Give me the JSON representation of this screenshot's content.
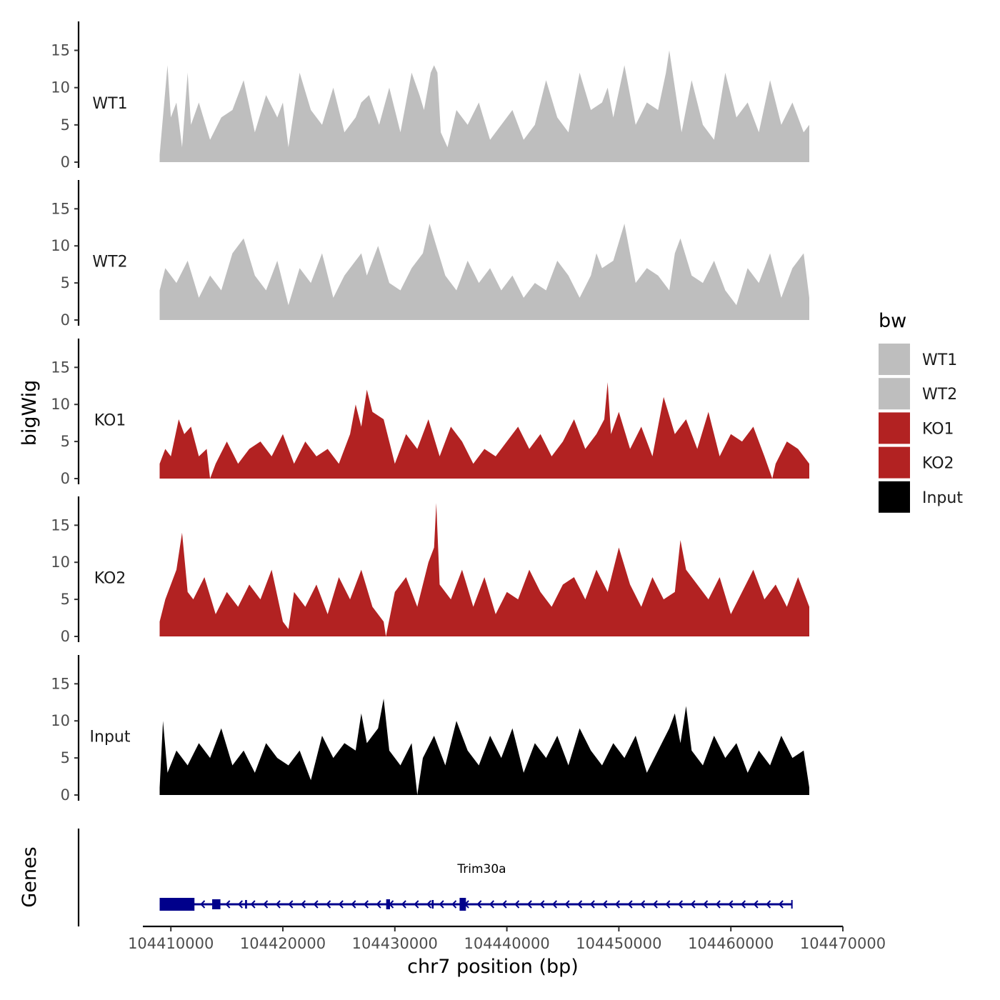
{
  "chart_data": {
    "type": "area",
    "title": "",
    "ylabel": "bigWig",
    "xlabel": "chr7 position (bp)",
    "xlim": [
      104407500,
      104470000
    ],
    "x_ticks": [
      104410000,
      104420000,
      104430000,
      104440000,
      104450000,
      104460000,
      104470000
    ],
    "x_tick_labels": [
      "104410000",
      "104420000",
      "104430000",
      "104440000",
      "104450000",
      "104460000",
      "104470000"
    ],
    "ylim": [
      0,
      18.5
    ],
    "y_ticks": [
      0,
      5,
      10,
      15
    ],
    "y_tick_labels": [
      "0",
      "5",
      "10",
      "15"
    ],
    "data_range": [
      104409000,
      104467000
    ],
    "colors": {
      "WT": "#bebebe",
      "KO": "#b22222",
      "Input": "#000000",
      "gene": "#00008b"
    },
    "legend": {
      "title": "bw",
      "position": "right",
      "entries": [
        {
          "label": "WT1",
          "color": "#bebebe"
        },
        {
          "label": "WT2",
          "color": "#bebebe"
        },
        {
          "label": "KO1",
          "color": "#b22222"
        },
        {
          "label": "KO2",
          "color": "#b22222"
        },
        {
          "label": "Input",
          "color": "#000000"
        }
      ]
    },
    "series": [
      {
        "name": "WT1",
        "color": "#bebebe",
        "x": [
          104409000,
          104409700,
          104410000,
          104410500,
          104411000,
          104411500,
          104411800,
          104412500,
          104413500,
          104414500,
          104415500,
          104416500,
          104417500,
          104418500,
          104419500,
          104420000,
          104420500,
          104421500,
          104422500,
          104423500,
          104424500,
          104425500,
          104426500,
          104427000,
          104427700,
          104428600,
          104429500,
          104430500,
          104431500,
          104432200,
          104432600,
          104433200,
          104433500,
          104433800,
          104434100,
          104434700,
          104435500,
          104436500,
          104437500,
          104438500,
          104439500,
          104440500,
          104441500,
          104442500,
          104443500,
          104444500,
          104445500,
          104446500,
          104447500,
          104448500,
          104449000,
          104449500,
          104450500,
          104451500,
          104452500,
          104453500,
          104454200,
          104454500,
          104455000,
          104455600,
          104456500,
          104457500,
          104458500,
          104459500,
          104460500,
          104461500,
          104462500,
          104463500,
          104464500,
          104465500,
          104466500,
          104467000
        ],
        "values": [
          1,
          13,
          6,
          8,
          2,
          12,
          5,
          8,
          3,
          6,
          7,
          11,
          4,
          9,
          6,
          8,
          2,
          12,
          7,
          5,
          10,
          4,
          6,
          8,
          9,
          5,
          10,
          4,
          12,
          9,
          7,
          12,
          13,
          12,
          4,
          2,
          7,
          5,
          8,
          3,
          5,
          7,
          3,
          5,
          11,
          6,
          4,
          12,
          7,
          8,
          10,
          6,
          13,
          5,
          8,
          7,
          12,
          15,
          10,
          4,
          11,
          5,
          3,
          12,
          6,
          8,
          4,
          11,
          5,
          8,
          4,
          5
        ]
      },
      {
        "name": "WT2",
        "color": "#bebebe",
        "x": [
          104409000,
          104409500,
          104410500,
          104411500,
          104412500,
          104413500,
          104414500,
          104415500,
          104416500,
          104417500,
          104418500,
          104419500,
          104420500,
          104421500,
          104422500,
          104423500,
          104424500,
          104425500,
          104426500,
          104427000,
          104427500,
          104428500,
          104429500,
          104430500,
          104431500,
          104432500,
          104433100,
          104433700,
          104434500,
          104435500,
          104436500,
          104437500,
          104438500,
          104439500,
          104440500,
          104441500,
          104442500,
          104443500,
          104444500,
          104445500,
          104446500,
          104447500,
          104448000,
          104448500,
          104449500,
          104450500,
          104451500,
          104452500,
          104453500,
          104454500,
          104455000,
          104455500,
          104456500,
          104457500,
          104458500,
          104459500,
          104460500,
          104461500,
          104462500,
          104463500,
          104464500,
          104465500,
          104466500,
          104467000
        ],
        "values": [
          4,
          7,
          5,
          8,
          3,
          6,
          4,
          9,
          11,
          6,
          4,
          8,
          2,
          7,
          5,
          9,
          3,
          6,
          8,
          9,
          6,
          10,
          5,
          4,
          7,
          9,
          13,
          10,
          6,
          4,
          8,
          5,
          7,
          4,
          6,
          3,
          5,
          4,
          8,
          6,
          3,
          6,
          9,
          7,
          8,
          13,
          5,
          7,
          6,
          4,
          9,
          11,
          6,
          5,
          8,
          4,
          2,
          7,
          5,
          9,
          3,
          7,
          9,
          3
        ]
      },
      {
        "name": "KO1",
        "color": "#b22222",
        "x": [
          104409000,
          104409500,
          104410000,
          104410700,
          104411200,
          104411800,
          104412500,
          104413200,
          104413500,
          104414000,
          104415000,
          104416000,
          104417000,
          104418000,
          104419000,
          104420000,
          104421000,
          104422000,
          104423000,
          104424000,
          104425000,
          104426000,
          104426500,
          104427000,
          104427500,
          104428000,
          104429000,
          104430000,
          104431000,
          104432000,
          104433000,
          104434000,
          104435000,
          104436000,
          104437000,
          104438000,
          104439000,
          104440000,
          104441000,
          104442000,
          104443000,
          104444000,
          104445000,
          104446000,
          104447000,
          104448000,
          104448700,
          104449000,
          104449300,
          104450000,
          104451000,
          104452000,
          104453000,
          104454000,
          104455000,
          104456000,
          104457000,
          104458000,
          104459000,
          104460000,
          104461000,
          104462000,
          104463000,
          104463700,
          104464000,
          104465000,
          104466000,
          104467000
        ],
        "values": [
          2,
          4,
          3,
          8,
          6,
          7,
          3,
          4,
          0,
          2,
          5,
          2,
          4,
          5,
          3,
          6,
          2,
          5,
          3,
          4,
          2,
          6,
          10,
          7,
          12,
          9,
          8,
          2,
          6,
          4,
          8,
          3,
          7,
          5,
          2,
          4,
          3,
          5,
          7,
          4,
          6,
          3,
          5,
          8,
          4,
          6,
          8,
          13,
          6,
          9,
          4,
          7,
          3,
          11,
          6,
          8,
          4,
          9,
          3,
          6,
          5,
          7,
          3,
          0,
          2,
          5,
          4,
          2
        ]
      },
      {
        "name": "KO2",
        "color": "#b22222",
        "x": [
          104409000,
          104409500,
          104410000,
          104410500,
          104411000,
          104411500,
          104412000,
          104413000,
          104414000,
          104415000,
          104416000,
          104417000,
          104418000,
          104419000,
          104420000,
          104420500,
          104421000,
          104422000,
          104423000,
          104424000,
          104425000,
          104426000,
          104427000,
          104428000,
          104429000,
          104429200,
          104430000,
          104431000,
          104432000,
          104433000,
          104433500,
          104433700,
          104434000,
          104435000,
          104436000,
          104437000,
          104438000,
          104439000,
          104440000,
          104441000,
          104442000,
          104443000,
          104444000,
          104445000,
          104446000,
          104447000,
          104448000,
          104449000,
          104450000,
          104451000,
          104452000,
          104453000,
          104454000,
          104455000,
          104455500,
          104456000,
          104457000,
          104458000,
          104459000,
          104460000,
          104461000,
          104462000,
          104463000,
          104464000,
          104465000,
          104466000,
          104467000
        ],
        "values": [
          2,
          5,
          7,
          9,
          14,
          6,
          5,
          8,
          3,
          6,
          4,
          7,
          5,
          9,
          2,
          1,
          6,
          4,
          7,
          3,
          8,
          5,
          9,
          4,
          2,
          0,
          6,
          8,
          4,
          10,
          12,
          18,
          7,
          5,
          9,
          4,
          8,
          3,
          6,
          5,
          9,
          6,
          4,
          7,
          8,
          5,
          9,
          6,
          12,
          7,
          4,
          8,
          5,
          6,
          13,
          9,
          7,
          5,
          8,
          3,
          6,
          9,
          5,
          7,
          4,
          8,
          4
        ]
      },
      {
        "name": "Input",
        "color": "#000000",
        "x": [
          104409000,
          104409300,
          104409700,
          104410500,
          104411500,
          104412500,
          104413500,
          104414500,
          104415500,
          104416500,
          104417500,
          104418500,
          104419500,
          104420500,
          104421500,
          104422500,
          104423500,
          104424500,
          104425500,
          104426500,
          104427000,
          104427500,
          104428500,
          104429000,
          104429500,
          104430500,
          104431500,
          104432000,
          104432500,
          104433500,
          104434500,
          104435500,
          104436500,
          104437500,
          104438500,
          104439500,
          104440500,
          104441500,
          104442500,
          104443500,
          104444500,
          104445500,
          104446500,
          104447500,
          104448500,
          104449500,
          104450500,
          104451500,
          104452500,
          104453500,
          104454500,
          104455000,
          104455500,
          104456000,
          104456500,
          104457500,
          104458500,
          104459500,
          104460500,
          104461500,
          104462500,
          104463500,
          104464500,
          104465500,
          104466500,
          104467000
        ],
        "values": [
          1,
          10,
          3,
          6,
          4,
          7,
          5,
          9,
          4,
          6,
          3,
          7,
          5,
          4,
          6,
          2,
          8,
          5,
          7,
          6,
          11,
          7,
          9,
          13,
          6,
          4,
          7,
          0,
          5,
          8,
          4,
          10,
          6,
          4,
          8,
          5,
          9,
          3,
          7,
          5,
          8,
          4,
          9,
          6,
          4,
          7,
          5,
          8,
          3,
          6,
          9,
          11,
          7,
          12,
          6,
          4,
          8,
          5,
          7,
          3,
          6,
          4,
          8,
          5,
          6,
          1
        ]
      }
    ],
    "genes": [
      {
        "name": "Trim30a",
        "start": 104409000,
        "end": 104465500,
        "strand": "-"
      }
    ],
    "gene_track_label": "Genes"
  }
}
